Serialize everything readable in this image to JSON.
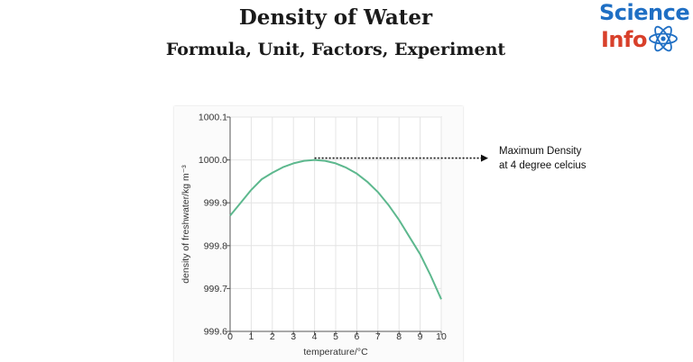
{
  "header": {
    "title": "Density of Water",
    "subtitle": "Formula, Unit, Factors, Experiment"
  },
  "logo": {
    "line1": "Science",
    "line2": "Info",
    "icon": "atom-icon",
    "colors": {
      "line1": "#1f6fc4",
      "line2": "#d8402b"
    }
  },
  "annotation": {
    "line1": "Maximum Density",
    "line2": "at 4 degree celcius"
  },
  "chart_data": {
    "type": "line",
    "title": "",
    "xlabel": "temperature/°C",
    "ylabel": "density of freshwater/kg m⁻³",
    "xlim": [
      0,
      10
    ],
    "ylim": [
      999.6,
      1000.1
    ],
    "x_ticks": [
      "0",
      "1",
      "2",
      "3",
      "4",
      "5",
      "6",
      "7",
      "8",
      "9",
      "10"
    ],
    "y_ticks": [
      "999.6",
      "999.7",
      "999.8",
      "999.9",
      "1000.0",
      "1000.1"
    ],
    "grid": true,
    "line_color": "#5db88e",
    "series": [
      {
        "x": [
          0,
          0.5,
          1,
          1.5,
          2,
          2.5,
          3,
          3.5,
          4,
          4.5,
          5,
          5.5,
          6,
          6.5,
          7,
          7.5,
          8,
          8.5,
          9,
          9.5,
          10
        ],
        "values": [
          999.87,
          999.9,
          999.93,
          999.955,
          999.97,
          999.983,
          999.992,
          999.998,
          1000.0,
          999.998,
          999.992,
          999.982,
          999.968,
          999.949,
          999.925,
          999.895,
          999.86,
          999.82,
          999.78,
          999.73,
          999.675
        ]
      }
    ],
    "annotation": {
      "x": 4,
      "y": 1000.0
    }
  }
}
